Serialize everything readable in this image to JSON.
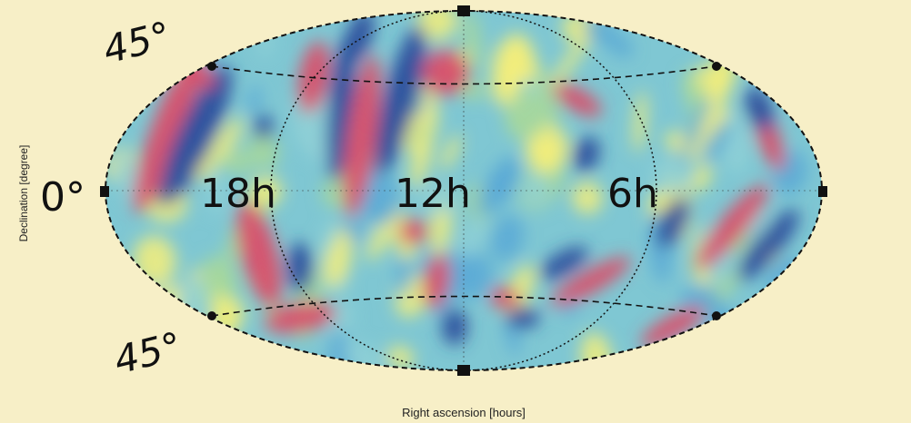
{
  "map": {
    "projection": "mollweide",
    "palette": {
      "background": "#f7efc7",
      "deep_blue": "#2b4e9c",
      "blue": "#5aa9d6",
      "light_blue": "#8fd0d6",
      "green": "#a8d89a",
      "yellow": "#f5ee7a",
      "red": "#d9506a"
    },
    "declination_labels": {
      "north": "45°",
      "equator": "0°",
      "south": "45°"
    },
    "ra_labels": {
      "left": "18h",
      "center": "12h",
      "right": "6h"
    }
  },
  "axes": {
    "xlabel": "Right ascension [hours]",
    "ylabel": "Declination [degree]"
  }
}
